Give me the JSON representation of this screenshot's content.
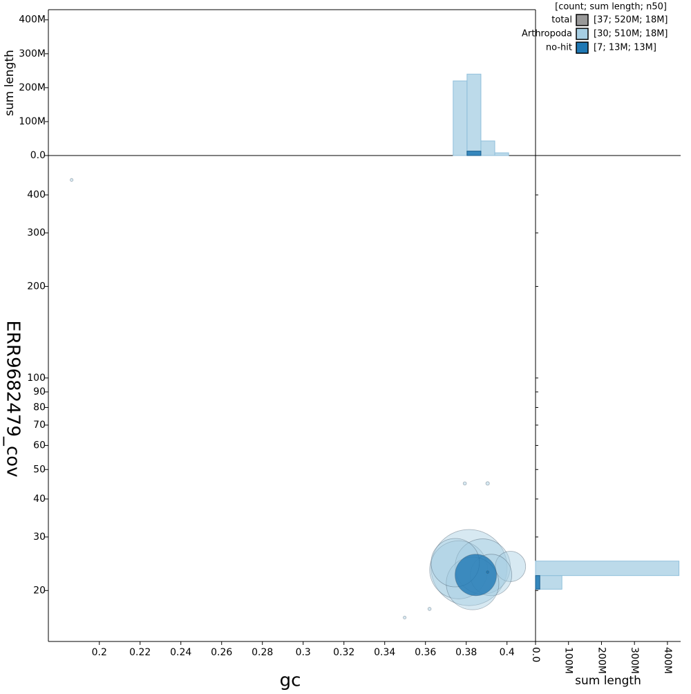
{
  "chart_data": {
    "type": "scatter",
    "xlabel": "gc",
    "ylabel": "ERR9682479_cov",
    "top_hist_label": "sum length",
    "right_hist_label": "sum length",
    "legend_title": "[count; sum length; n50]",
    "total": {
      "name": "total",
      "color": "#999999",
      "summary": "[37; 520M; 18M]"
    },
    "log_y": true,
    "xlim": [
      0.175,
      0.414
    ],
    "xticks": [
      0.2,
      0.22,
      0.24,
      0.26,
      0.28,
      0.3,
      0.32,
      0.34,
      0.36,
      0.38,
      0.4
    ],
    "ylim": [
      13.6,
      539
    ],
    "yticks": [
      20,
      30,
      40,
      50,
      60,
      70,
      80,
      90,
      100,
      200,
      300,
      400
    ],
    "gc_bins": [
      0.3736,
      0.3804,
      0.3872,
      0.394,
      0.4008
    ],
    "cov_bins": [
      20.2,
      22.4,
      25.0
    ],
    "top_hist_ylim": [
      0,
      430000000
    ],
    "top_hist_yticks": [
      {
        "value": 0,
        "label": "0.0"
      },
      {
        "value": 100000000,
        "label": "100M"
      },
      {
        "value": 200000000,
        "label": "200M"
      },
      {
        "value": 300000000,
        "label": "300M"
      },
      {
        "value": 400000000,
        "label": "400M"
      }
    ],
    "right_hist_xlim": [
      0,
      440000000
    ],
    "right_hist_xticks": [
      {
        "value": 0,
        "label": "0.0"
      },
      {
        "value": 100000000,
        "label": "100M"
      },
      {
        "value": 200000000,
        "label": "200M"
      },
      {
        "value": 300000000,
        "label": "300M"
      },
      {
        "value": 400000000,
        "label": "400M"
      }
    ],
    "series": [
      {
        "name": "Arthropoda",
        "color": "#a6cee3",
        "summary": "[30; 510M; 18M]",
        "x": [
          0.3814,
          0.3763,
          0.3881,
          0.4017,
          0.3922,
          0.3831,
          0.3746,
          0.1864,
          0.3793,
          0.3905,
          0.3498,
          0.362
        ],
        "values": [
          23.8,
          23.4,
          24.0,
          24.0,
          22.5,
          21.1,
          24.7,
          448,
          45,
          45,
          16.3,
          17.4
        ],
        "sizes": [
          27,
          15.7,
          14.2,
          4.3,
          8.0,
          12.9,
          10.9,
          0.04,
          0.05,
          0.06,
          0.04,
          0.05
        ],
        "gc_hist": [
          220000000,
          240000000,
          43000000,
          8000000
        ],
        "cov_hist": [
          80000000,
          435000000
        ]
      },
      {
        "name": "no-hit",
        "color": "#1f78b4",
        "summary": "[7; 13M; 13M]",
        "x": [
          0.3847,
          0.3905
        ],
        "values": [
          22.5,
          23.0
        ],
        "sizes": [
          8.0,
          0.03
        ],
        "gc_hist": [
          0,
          13000000,
          0,
          0
        ],
        "cov_hist": [
          13000000,
          0
        ]
      }
    ]
  }
}
